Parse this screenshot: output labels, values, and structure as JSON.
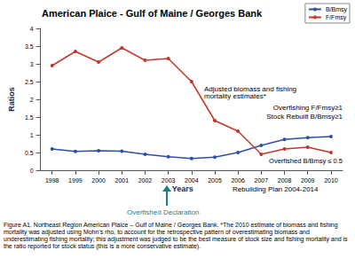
{
  "chart_data": {
    "type": "line",
    "title": "American Plaice - Gulf of Maine / Georges Bank",
    "x_label": "Years",
    "y_label": "Ratios",
    "categories": [
      "1998",
      "1999",
      "2000",
      "2001",
      "2002",
      "2003",
      "2004",
      "2005",
      "2006",
      "2007",
      "2008",
      "2009",
      "2010"
    ],
    "series": [
      {
        "name": "B/Bmsy",
        "color": "#2e4fa8",
        "marker": "circle",
        "values": [
          0.6,
          0.53,
          0.55,
          0.54,
          0.45,
          0.38,
          0.33,
          0.37,
          0.5,
          0.7,
          0.87,
          0.92,
          0.95
        ]
      },
      {
        "name": "F/Fmsy",
        "color": "#c0392b",
        "marker": "circle",
        "values": [
          2.95,
          3.35,
          3.05,
          3.45,
          3.1,
          3.15,
          2.5,
          1.4,
          1.1,
          0.45,
          0.6,
          0.65,
          0.5
        ]
      }
    ],
    "ylim": [
      0,
      4
    ],
    "yticks": [
      0,
      0.5,
      1,
      1.5,
      2,
      2.5,
      3,
      3.5,
      4
    ],
    "grid": false,
    "legend": "top-right",
    "annotations": [
      "Adjusted biomass and fishing mortality estimates*",
      "Overfishing F/Fmsy≥1",
      "Stock Rebuilt B/Bmsy≥1",
      "Overfished B/Bmsy ≤ 0.5",
      "Overfished Declaration",
      "Rebuilding Plan 2004-2014"
    ],
    "caption": "Figure A1.  Northeast Region  American Plaice – Gulf of Maine / Georges Bank. *The 2010 estimate of biomass and fishing mortality was adjusted using Mohn's rho, to account for the retrospective pattern of overestimating biomass and underestimating fishing mortality; this adjustment was judged to be the best measure of stock size and fishing mortality and is the ratio reported for stock status (this is a more conservative estimate)."
  }
}
